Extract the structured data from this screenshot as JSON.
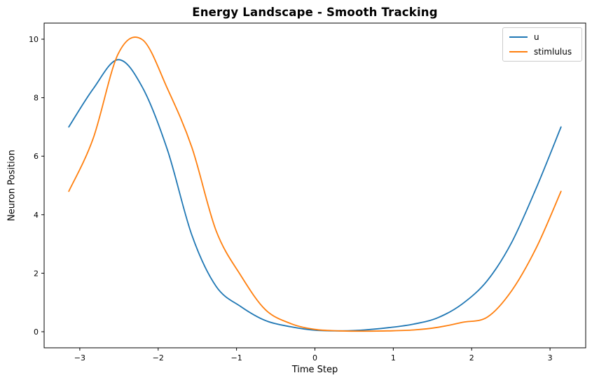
{
  "title": "Energy Landscape - Smooth Tracking",
  "chart_data": {
    "type": "line",
    "title": "Energy Landscape - Smooth Tracking",
    "xlabel": "Time Step",
    "ylabel": "Neuron Position",
    "xlim": [
      -3.455,
      3.455
    ],
    "ylim": [
      -0.55,
      10.55
    ],
    "xtick_values": [
      -3,
      -2,
      -1,
      0,
      1,
      2,
      3
    ],
    "xtick_labels": [
      "−3",
      "−2",
      "−1",
      "0",
      "1",
      "2",
      "3"
    ],
    "ytick_values": [
      0,
      2,
      4,
      6,
      8,
      10
    ],
    "ytick_labels": [
      "0",
      "2",
      "4",
      "6",
      "8",
      "10"
    ],
    "grid": false,
    "legend_position": "upper right",
    "x": [
      -3.14,
      -2.83,
      -2.51,
      -2.2,
      -1.88,
      -1.57,
      -1.26,
      -0.94,
      -0.63,
      -0.31,
      0.0,
      0.31,
      0.63,
      0.94,
      1.26,
      1.57,
      1.88,
      2.2,
      2.51,
      2.83,
      3.14
    ],
    "series": [
      {
        "name": "u",
        "color": "#1f77b4",
        "peak": {
          "x": -2.55,
          "y": 9.3
        },
        "values": [
          7.0,
          8.3,
          9.3,
          8.35,
          6.2,
          3.3,
          1.55,
          0.85,
          0.38,
          0.17,
          0.05,
          0.03,
          0.06,
          0.14,
          0.26,
          0.48,
          0.95,
          1.75,
          3.05,
          4.95,
          7.0
        ]
      },
      {
        "name": "stimlulus",
        "color": "#ff7f0e",
        "peak": {
          "x": -2.27,
          "y": 10.0
        },
        "values": [
          4.8,
          6.6,
          9.5,
          9.98,
          8.3,
          6.3,
          3.45,
          1.9,
          0.75,
          0.28,
          0.08,
          0.03,
          0.02,
          0.03,
          0.06,
          0.15,
          0.32,
          0.5,
          1.4,
          2.9,
          4.8
        ]
      }
    ]
  }
}
